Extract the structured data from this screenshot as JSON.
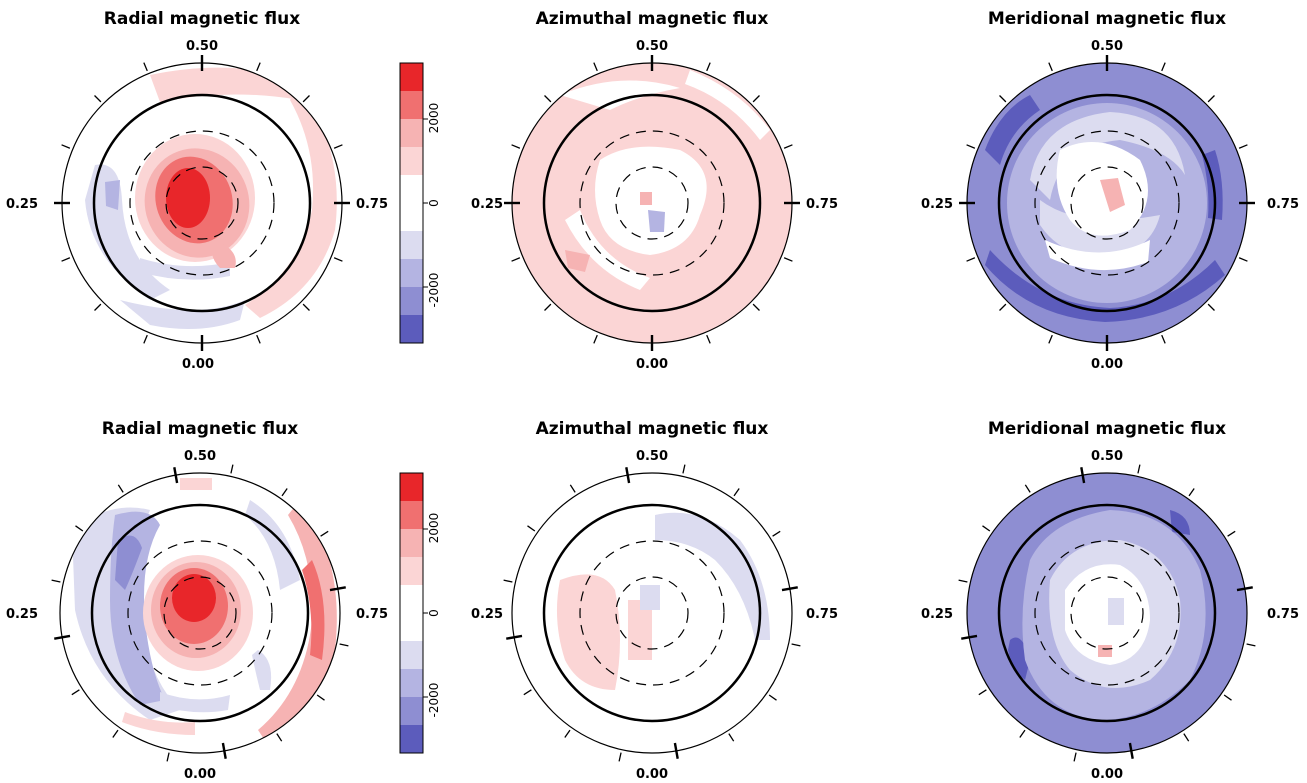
{
  "colors": {
    "pos_strong": "#e8262a",
    "pos_medium": "#f07070",
    "pos_light": "#f6b3b3",
    "pos_faint": "#fbd5d5",
    "neg_faint": "#dcdcf0",
    "neg_light": "#b4b4e2",
    "neg_medium": "#8e8ed2",
    "neg_strong": "#5c5cbc",
    "white": "#ffffff"
  },
  "colorbar": {
    "tick_labels": [
      "2000",
      "0",
      "-2000"
    ]
  },
  "rows": [
    {
      "panels": [
        {
          "title": "Radial magnetic flux",
          "label_top": "0.50",
          "label_left": "0.25",
          "label_right": "0.75",
          "label_bottom": "0.00"
        },
        {
          "title": "Azimuthal magnetic flux",
          "label_top": "0.50",
          "label_left": "0.25",
          "label_right": "0.75",
          "label_bottom": "0.00"
        },
        {
          "title": "Meridional magnetic flux",
          "label_top": "0.50",
          "label_left": "0.25",
          "label_right": "0.75",
          "label_bottom": "0.00"
        }
      ]
    },
    {
      "panels": [
        {
          "title": "Radial magnetic flux",
          "label_top": "0.50",
          "label_left": "0.25",
          "label_right": "0.75",
          "label_bottom": "0.00"
        },
        {
          "title": "Azimuthal magnetic flux",
          "label_top": "0.50",
          "label_left": "0.25",
          "label_right": "0.75",
          "label_bottom": "0.00"
        },
        {
          "title": "Meridional magnetic flux",
          "label_top": "0.50",
          "label_left": "0.25",
          "label_right": "0.75",
          "label_bottom": "0.00"
        }
      ]
    }
  ]
}
